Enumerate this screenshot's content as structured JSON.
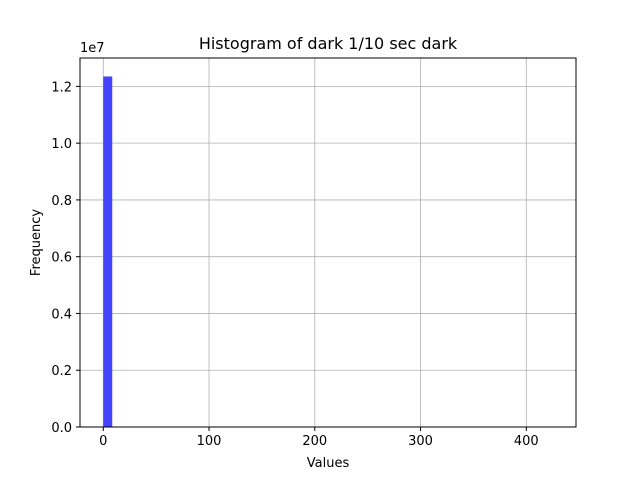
{
  "chart_data": {
    "type": "bar",
    "title": "Histogram of dark 1/10 sec dark",
    "xlabel": "Values",
    "ylabel": "Frequency",
    "y_offset_label": "1e7",
    "xlim": [
      -22,
      447
    ],
    "ylim": [
      0,
      1.3
    ],
    "x_ticks": [
      0,
      100,
      200,
      300,
      400
    ],
    "x_tick_labels": [
      "0",
      "100",
      "200",
      "300",
      "400"
    ],
    "y_ticks": [
      0.0,
      0.2,
      0.4,
      0.6,
      0.8,
      1.0,
      1.2
    ],
    "y_tick_labels": [
      "0.0",
      "0.2",
      "0.4",
      "0.6",
      "0.8",
      "1.0",
      "1.2"
    ],
    "grid": true,
    "bar_color": "#4444ff",
    "bins": [
      {
        "x0": 0,
        "x1": 8.5,
        "value": 1.235
      }
    ]
  }
}
